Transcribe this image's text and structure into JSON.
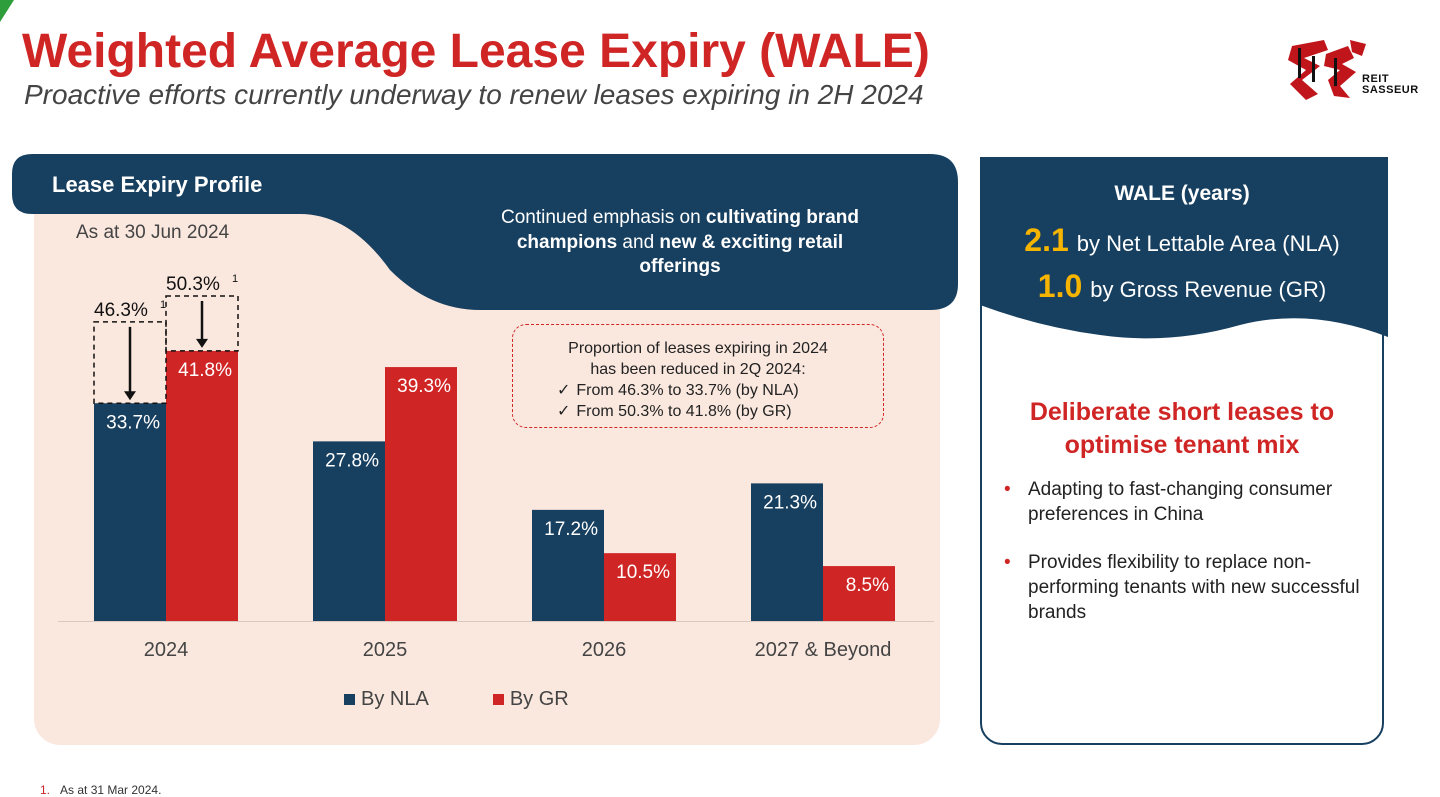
{
  "header": {
    "title": "Weighted Average Lease Expiry (WALE)",
    "subtitle": "Proactive efforts currently underway to renew leases expiring in 2H 2024",
    "logo_text": "REIT SASSEUR"
  },
  "panel": {
    "title": "Lease Expiry Profile",
    "as_at": "As at 30 Jun 2024",
    "emphasis": {
      "p1": "Continued emphasis on ",
      "b1": "cultivating brand champions",
      "p2": " and ",
      "b2": "new & exciting retail offerings"
    },
    "callout": {
      "line1": "Proportion of leases expiring in 2024",
      "line2": "has been reduced in 2Q 2024:",
      "items": [
        "From 46.3% to 33.7% (by NLA)",
        "From 50.3% to 41.8% (by GR)"
      ],
      "tick": "✓"
    }
  },
  "chart_data": {
    "type": "bar",
    "categories": [
      "2024",
      "2025",
      "2026",
      "2027 & Beyond"
    ],
    "series": [
      {
        "name": "By NLA",
        "values": [
          33.7,
          27.8,
          17.2,
          21.3
        ],
        "labels": [
          "33.7%",
          "27.8%",
          "17.2%",
          "21.3%"
        ],
        "color": "#173f5f"
      },
      {
        "name": "By GR",
        "values": [
          41.8,
          39.3,
          10.5,
          8.5
        ],
        "labels": [
          "41.8%",
          "39.3%",
          "10.5%",
          "8.5%"
        ],
        "color": "#d02525"
      }
    ],
    "previous": [
      {
        "category": "2024",
        "series": "By NLA",
        "value": 46.3,
        "label": "46.3%",
        "note": "1"
      },
      {
        "category": "2024",
        "series": "By GR",
        "value": 50.3,
        "label": "50.3%",
        "note": "1"
      }
    ],
    "ylim": [
      0,
      50.3
    ],
    "legend_position": "bottom",
    "grid": false
  },
  "wale": {
    "title": "WALE (years)",
    "nla_value": "2.1",
    "nla_text": "by Net Lettable Area (NLA)",
    "gr_value": "1.0",
    "gr_text": "by Gross Revenue (GR)",
    "heading": "Deliberate short leases to optimise tenant mix",
    "bullets": [
      "Adapting to fast-changing consumer preferences in China",
      "Provides flexibility to replace non-performing tenants with new successful brands"
    ],
    "bullet_char": "•"
  },
  "footnote": {
    "number": "1.",
    "text": "As at 31 Mar 2024."
  },
  "colors": {
    "navy": "#173f5f",
    "red": "#d02525",
    "panel_bg": "#fae8df",
    "gold": "#f5b400"
  }
}
